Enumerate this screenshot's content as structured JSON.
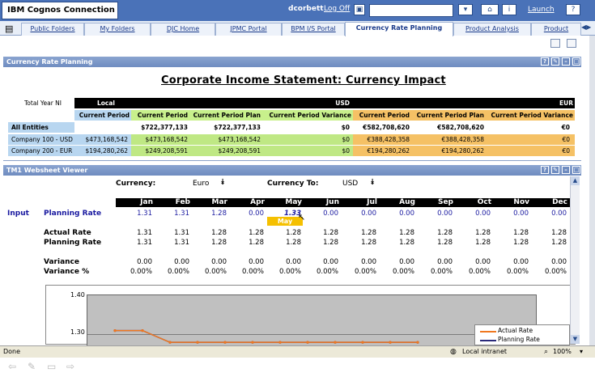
{
  "app": {
    "title": "IBM Cognos Connection",
    "user": "dcorbett",
    "logoff": "Log Off",
    "launch": "Launch"
  },
  "tabs": [
    {
      "label": "Public Folders"
    },
    {
      "label": "My Folders"
    },
    {
      "label": "DJC Home"
    },
    {
      "label": "JPMC Portal"
    },
    {
      "label": "BPM I/S Portal"
    },
    {
      "label": "Currency Rate Planning"
    },
    {
      "label": "Product Analysis"
    },
    {
      "label": "Product"
    }
  ],
  "report": {
    "panel_title": "Currency Rate Planning",
    "title": "Corporate Income Statement: Currency Impact",
    "row_label": "Total Year NI",
    "groups": {
      "local": "Local",
      "usd": "USD",
      "eur": "EUR"
    },
    "headers": [
      "Current Period",
      "Current Period",
      "Current Period Plan",
      "Current Period Variance",
      "Current Period",
      "Current Period Plan",
      "Current Period Variance"
    ],
    "rows": [
      {
        "label": "All Entities",
        "cells": [
          "",
          "$722,377,133",
          "$722,377,133",
          "$0",
          "€582,708,620",
          "€582,708,620",
          "€0"
        ]
      },
      {
        "label": "Company 100 - USD",
        "cells": [
          "$473,168,542",
          "$473,168,542",
          "$473,168,542",
          "$0",
          "€388,428,358",
          "€388,428,358",
          "€0"
        ]
      },
      {
        "label": "Company 200 - EUR",
        "cells": [
          "$194,280,262",
          "$249,208,591",
          "$249,208,591",
          "$0",
          "€194,280,262",
          "€194,280,262",
          "€0"
        ]
      }
    ]
  },
  "websheet": {
    "panel_title": "TM1 Websheet Viewer",
    "currency_label": "Currency:",
    "currency_value": "Euro",
    "currency_to_label": "Currency To:",
    "currency_to_value": "USD",
    "months": [
      "Jan",
      "Feb",
      "Mar",
      "Apr",
      "May",
      "Jun",
      "Jul",
      "Aug",
      "Sep",
      "Oct",
      "Nov",
      "Dec"
    ],
    "input_label": "Input",
    "tooltip": "May",
    "rows": [
      {
        "label": "Planning Rate",
        "values": [
          "1.31",
          "1.31",
          "1.28",
          "0.00",
          "1.33",
          "0.00",
          "0.00",
          "0.00",
          "0.00",
          "0.00",
          "0.00",
          "0.00"
        ]
      },
      {
        "label": "Actual Rate",
        "values": [
          "1.31",
          "1.31",
          "1.28",
          "1.28",
          "1.28",
          "1.28",
          "1.28",
          "1.28",
          "1.28",
          "1.28",
          "1.28",
          "1.28"
        ]
      },
      {
        "label": "Planning Rate",
        "values": [
          "1.31",
          "1.31",
          "1.28",
          "1.28",
          "1.28",
          "1.28",
          "1.28",
          "1.28",
          "1.28",
          "1.28",
          "1.28",
          "1.28"
        ]
      },
      {
        "label": "Variance",
        "values": [
          "0.00",
          "0.00",
          "0.00",
          "0.00",
          "0.00",
          "0.00",
          "0.00",
          "0.00",
          "0.00",
          "0.00",
          "0.00",
          "0.00"
        ]
      },
      {
        "label": "Variance %",
        "values": [
          "0.00%",
          "0.00%",
          "0.00%",
          "0.00%",
          "0.00%",
          "0.00%",
          "0.00%",
          "0.00%",
          "0.00%",
          "0.00%",
          "0.00%",
          "0.00%"
        ]
      }
    ]
  },
  "chart_data": {
    "type": "line",
    "yticks": [
      "1.40",
      "1.30"
    ],
    "ylim": [
      1.27,
      1.4
    ],
    "series": [
      {
        "name": "Actual Rate",
        "color": "#f07820",
        "values": [
          1.31,
          1.31,
          1.28,
          1.28,
          1.28,
          1.28,
          1.28,
          1.28,
          1.28,
          1.28,
          1.28,
          1.28
        ]
      },
      {
        "name": "Planning Rate",
        "color": "#2a2a7a",
        "values": [
          1.31,
          1.31,
          1.28,
          1.28,
          1.28,
          1.28,
          1.28,
          1.28,
          1.28,
          1.28,
          1.28,
          1.28
        ]
      }
    ]
  },
  "status": {
    "left": "Done",
    "zone": "Local intranet",
    "zoom": "100%"
  }
}
